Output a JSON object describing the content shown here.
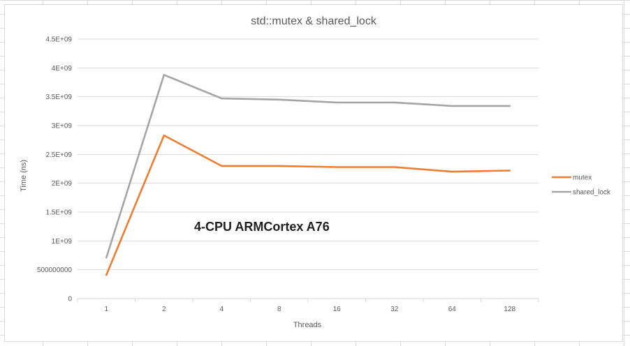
{
  "chart_data": {
    "type": "line",
    "title": "std::mutex & shared_lock",
    "xlabel": "Threads",
    "ylabel": "Time (ns)",
    "categories": [
      "1",
      "2",
      "4",
      "8",
      "16",
      "32",
      "64",
      "128"
    ],
    "ylim": [
      0,
      4500000000
    ],
    "yticks": [
      {
        "value": 0,
        "label": "0"
      },
      {
        "value": 500000000,
        "label": "500000000"
      },
      {
        "value": 1000000000,
        "label": "1E+09"
      },
      {
        "value": 1500000000,
        "label": "1.5E+09"
      },
      {
        "value": 2000000000,
        "label": "2E+09"
      },
      {
        "value": 2500000000,
        "label": "2.5E+09"
      },
      {
        "value": 3000000000,
        "label": "3E+09"
      },
      {
        "value": 3500000000,
        "label": "3.5E+09"
      },
      {
        "value": 4000000000,
        "label": "4E+09"
      },
      {
        "value": 4500000000,
        "label": "4.5E+09"
      }
    ],
    "grid": true,
    "legend": "right",
    "annotation": "4-CPU ARMCortex A76",
    "series": [
      {
        "name": "mutex",
        "color": "#ed7d31",
        "values": [
          410000000,
          2830000000,
          2300000000,
          2300000000,
          2280000000,
          2280000000,
          2200000000,
          2220000000
        ]
      },
      {
        "name": "shared_lock",
        "color": "#a5a5a5",
        "values": [
          710000000,
          3880000000,
          3470000000,
          3450000000,
          3400000000,
          3400000000,
          3340000000,
          3340000000
        ]
      }
    ]
  }
}
